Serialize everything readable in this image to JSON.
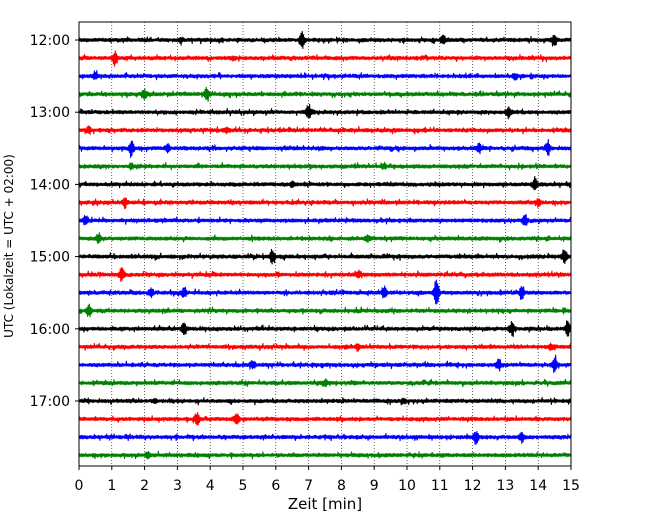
{
  "chart_data": {
    "type": "line",
    "title": "",
    "xlabel": "Zeit  [min]",
    "ylabel": "UTC (Lokalzeit = UTC + 02:00)",
    "xlim": [
      0,
      15
    ],
    "x_ticks": [
      "0",
      "1",
      "2",
      "3",
      "4",
      "5",
      "6",
      "7",
      "8",
      "9",
      "10",
      "11",
      "12",
      "13",
      "14",
      "15"
    ],
    "y_tick_labels": [
      "12:00",
      "13:00",
      "14:00",
      "15:00",
      "16:00",
      "17:00"
    ],
    "grid": "vertical dotted lines at each minute",
    "colors": [
      "#000000",
      "#ff0000",
      "#0000ff",
      "#008000"
    ],
    "series": [
      {
        "start": "12:00",
        "color": "#000000",
        "events": [
          [
            3.1,
            0.3
          ],
          [
            6.8,
            1.0
          ],
          [
            11.1,
            0.6
          ],
          [
            14.5,
            0.7
          ]
        ]
      },
      {
        "start": "12:15",
        "color": "#ff0000",
        "events": [
          [
            1.1,
            0.8
          ],
          [
            4.7,
            0.2
          ]
        ]
      },
      {
        "start": "12:30",
        "color": "#0000ff",
        "events": [
          [
            0.5,
            0.3
          ],
          [
            13.3,
            0.3
          ]
        ]
      },
      {
        "start": "12:45",
        "color": "#008000",
        "events": [
          [
            2.0,
            0.6
          ],
          [
            3.9,
            0.8
          ]
        ]
      },
      {
        "start": "13:00",
        "color": "#000000",
        "events": [
          [
            7.0,
            0.9
          ],
          [
            13.1,
            0.7
          ]
        ]
      },
      {
        "start": "13:15",
        "color": "#ff0000",
        "events": [
          [
            0.3,
            0.4
          ],
          [
            4.5,
            0.3
          ]
        ]
      },
      {
        "start": "13:30",
        "color": "#0000ff",
        "events": [
          [
            1.6,
            1.0
          ],
          [
            2.7,
            0.5
          ],
          [
            12.2,
            0.5
          ],
          [
            14.3,
            0.7
          ]
        ]
      },
      {
        "start": "13:45",
        "color": "#008000",
        "events": [
          [
            1.6,
            0.3
          ],
          [
            9.3,
            0.3
          ]
        ]
      },
      {
        "start": "14:00",
        "color": "#000000",
        "events": [
          [
            6.5,
            0.3
          ],
          [
            13.9,
            0.8
          ]
        ]
      },
      {
        "start": "14:15",
        "color": "#ff0000",
        "events": [
          [
            1.4,
            0.6
          ],
          [
            14.0,
            0.4
          ]
        ]
      },
      {
        "start": "14:30",
        "color": "#0000ff",
        "events": [
          [
            0.2,
            0.6
          ],
          [
            13.6,
            0.7
          ]
        ]
      },
      {
        "start": "14:45",
        "color": "#008000",
        "events": [
          [
            0.6,
            0.6
          ],
          [
            8.8,
            0.4
          ]
        ]
      },
      {
        "start": "15:00",
        "color": "#000000",
        "events": [
          [
            5.9,
            0.8
          ],
          [
            14.8,
            0.9
          ]
        ]
      },
      {
        "start": "15:15",
        "color": "#ff0000",
        "events": [
          [
            1.3,
            0.8
          ],
          [
            8.5,
            0.3
          ]
        ]
      },
      {
        "start": "15:30",
        "color": "#0000ff",
        "events": [
          [
            2.2,
            0.5
          ],
          [
            3.2,
            0.6
          ],
          [
            9.3,
            0.7
          ],
          [
            10.9,
            1.8
          ],
          [
            13.5,
            0.8
          ]
        ]
      },
      {
        "start": "15:45",
        "color": "#008000",
        "events": [
          [
            0.3,
            0.7
          ]
        ]
      },
      {
        "start": "16:00",
        "color": "#000000",
        "events": [
          [
            3.2,
            0.6
          ],
          [
            13.2,
            0.8
          ],
          [
            14.9,
            0.9
          ]
        ]
      },
      {
        "start": "16:15",
        "color": "#ff0000",
        "events": [
          [
            8.5,
            0.3
          ],
          [
            14.4,
            0.3
          ]
        ]
      },
      {
        "start": "16:30",
        "color": "#0000ff",
        "events": [
          [
            5.3,
            0.4
          ],
          [
            12.8,
            0.6
          ],
          [
            14.5,
            0.9
          ]
        ]
      },
      {
        "start": "16:45",
        "color": "#008000",
        "events": [
          [
            7.5,
            0.3
          ]
        ]
      },
      {
        "start": "17:00",
        "color": "#000000",
        "events": [
          [
            2.3,
            0.3
          ],
          [
            9.9,
            0.3
          ]
        ]
      },
      {
        "start": "17:15",
        "color": "#ff0000",
        "events": [
          [
            3.6,
            0.8
          ],
          [
            4.8,
            0.7
          ]
        ]
      },
      {
        "start": "17:30",
        "color": "#0000ff",
        "events": [
          [
            12.1,
            0.8
          ],
          [
            13.5,
            0.6
          ]
        ]
      },
      {
        "start": "17:45",
        "color": "#008000",
        "events": [
          [
            2.1,
            0.4
          ]
        ]
      }
    ]
  }
}
